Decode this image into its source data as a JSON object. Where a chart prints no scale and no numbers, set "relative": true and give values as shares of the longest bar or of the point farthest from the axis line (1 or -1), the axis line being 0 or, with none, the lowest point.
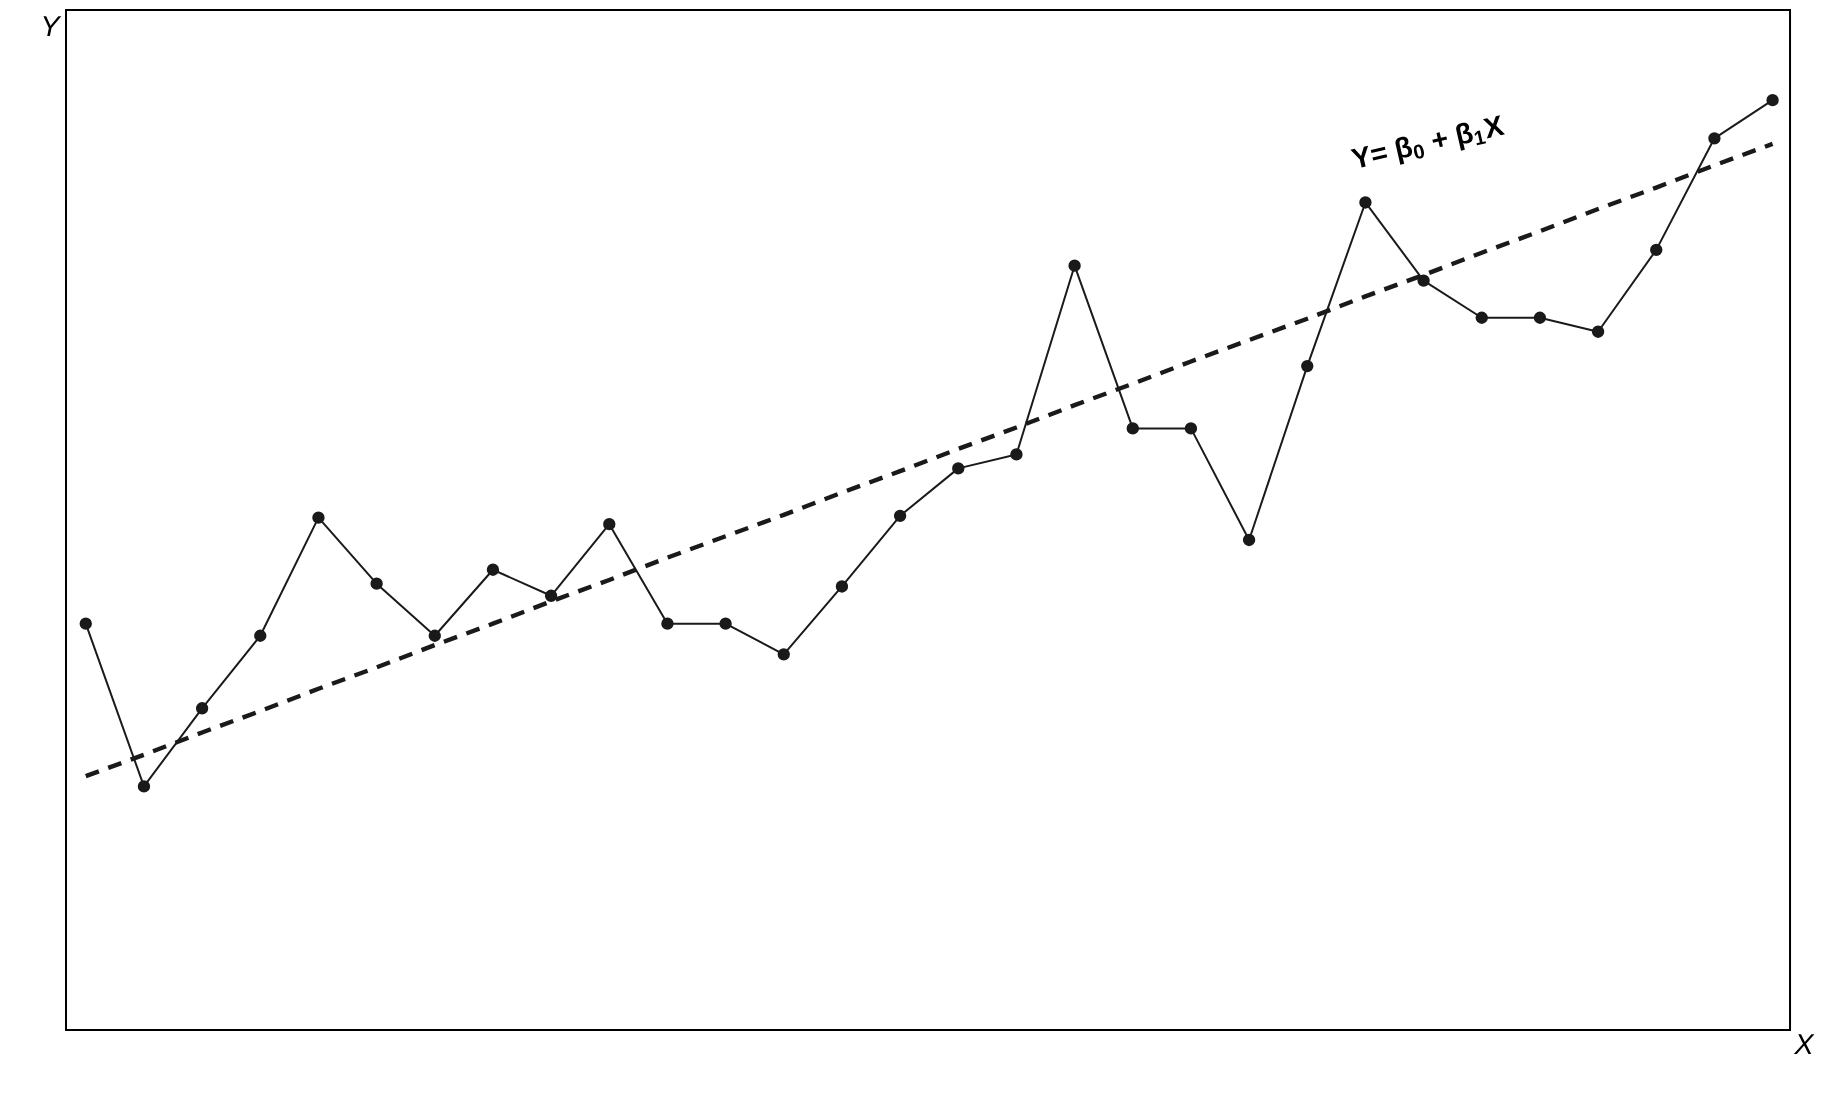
{
  "chart_data": {
    "type": "line",
    "relative": true,
    "xlabel": "X",
    "ylabel": "Y",
    "categories": [
      null,
      null,
      null,
      null,
      null,
      null,
      null,
      null,
      null,
      null,
      null,
      null,
      null,
      null,
      null,
      null,
      null,
      null,
      null,
      null,
      null,
      null,
      null,
      null,
      null,
      null,
      null,
      null,
      null,
      null
    ],
    "series": [
      {
        "color": "#1a1a1a",
        "marker": "circle",
        "line_style": "solid",
        "values": [
          0.437,
          0.262,
          0.346,
          0.424,
          0.551,
          0.48,
          0.424,
          0.495,
          0.467,
          0.544,
          0.437,
          0.437,
          0.404,
          0.477,
          0.553,
          0.604,
          0.619,
          0.822,
          0.647,
          0.647,
          0.527,
          0.714,
          0.89,
          0.806,
          0.766,
          0.766,
          0.751,
          0.839,
          0.959,
          1
        ]
      },
      {
        "color": "#1a1a1a",
        "marker": "none",
        "line_style": "dashed",
        "values": [
          0.273,
          0.296,
          0.32,
          0.343,
          0.367,
          0.39,
          0.414,
          0.437,
          0.461,
          0.484,
          0.508,
          0.531,
          0.554,
          0.578,
          0.601,
          0.625,
          0.648,
          0.672,
          0.695,
          0.719,
          0.742,
          0.765,
          0.789,
          0.812,
          0.836,
          0.859,
          0.883,
          0.906,
          0.93,
          0.953
        ]
      }
    ],
    "annotations": [
      "Y= β$_{0}$ + β$_{1}$X"
    ]
  }
}
